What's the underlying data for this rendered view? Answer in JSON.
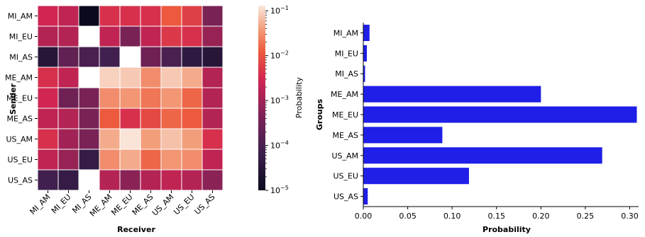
{
  "chart_data": [
    {
      "type": "heatmap",
      "xlabel": "Receiver",
      "ylabel": "Sender",
      "rows": [
        "MI_AM",
        "MI_EU",
        "MI_AS",
        "ME_AM",
        "ME_EU",
        "ME_AS",
        "US_AM",
        "US_EU",
        "US_AS"
      ],
      "columns": [
        "MI_AM",
        "MI_EU",
        "MI_AS",
        "ME_AM",
        "ME_EU",
        "ME_AS",
        "US_AM",
        "US_EU",
        "US_AS"
      ],
      "values": [
        [
          0.003,
          0.002,
          1e-05,
          0.004,
          0.004,
          0.004,
          0.012,
          0.006,
          0.0004
        ],
        [
          0.0015,
          0.0015,
          null,
          0.002,
          0.0004,
          0.002,
          0.005,
          0.004,
          0.0008
        ],
        [
          3e-05,
          0.0002,
          0.0001,
          8e-05,
          null,
          0.0003,
          0.0001,
          4e-05,
          3e-05
        ],
        [
          0.004,
          0.002,
          null,
          0.09,
          0.08,
          0.03,
          0.08,
          0.05,
          0.0015
        ],
        [
          0.003,
          0.0003,
          0.0004,
          0.03,
          0.035,
          0.02,
          0.035,
          0.015,
          0.0015
        ],
        [
          0.002,
          0.0015,
          0.0004,
          0.012,
          0.004,
          0.008,
          0.015,
          0.012,
          0.0015
        ],
        [
          0.004,
          0.001,
          0.0004,
          0.05,
          0.12,
          0.04,
          0.07,
          0.04,
          0.004
        ],
        [
          0.002,
          0.0008,
          5e-05,
          0.03,
          0.05,
          0.015,
          0.035,
          0.03,
          0.002
        ],
        [
          8e-05,
          5e-05,
          null,
          0.0015,
          0.0006,
          0.0015,
          0.002,
          0.0015,
          0.0006
        ]
      ],
      "colorbar": {
        "label": "Probability",
        "scale": "log",
        "range": [
          1e-05,
          0.13
        ],
        "ticks": [
          {
            "value": 1e-05,
            "base": "10",
            "exp": "−5"
          },
          {
            "value": 0.0001,
            "base": "10",
            "exp": "−4"
          },
          {
            "value": 0.001,
            "base": "10",
            "exp": "−3"
          },
          {
            "value": 0.01,
            "base": "10",
            "exp": "−2"
          },
          {
            "value": 0.1,
            "base": "10",
            "exp": "−1"
          }
        ]
      }
    },
    {
      "type": "bar",
      "orientation": "horizontal",
      "xlabel": "Probability",
      "ylabel": "Groups",
      "categories": [
        "MI_AM",
        "MI_EU",
        "MI_AS",
        "ME_AM",
        "ME_EU",
        "ME_AS",
        "US_AM",
        "US_EU",
        "US_AS"
      ],
      "values": [
        0.007,
        0.004,
        0.002,
        0.2,
        0.308,
        0.089,
        0.269,
        0.119,
        0.005
      ],
      "xlim": [
        0,
        0.31
      ],
      "xticks": [
        "0.00",
        "0.05",
        "0.10",
        "0.15",
        "0.20",
        "0.25",
        "0.30"
      ],
      "color": "#1f1fe8"
    }
  ]
}
